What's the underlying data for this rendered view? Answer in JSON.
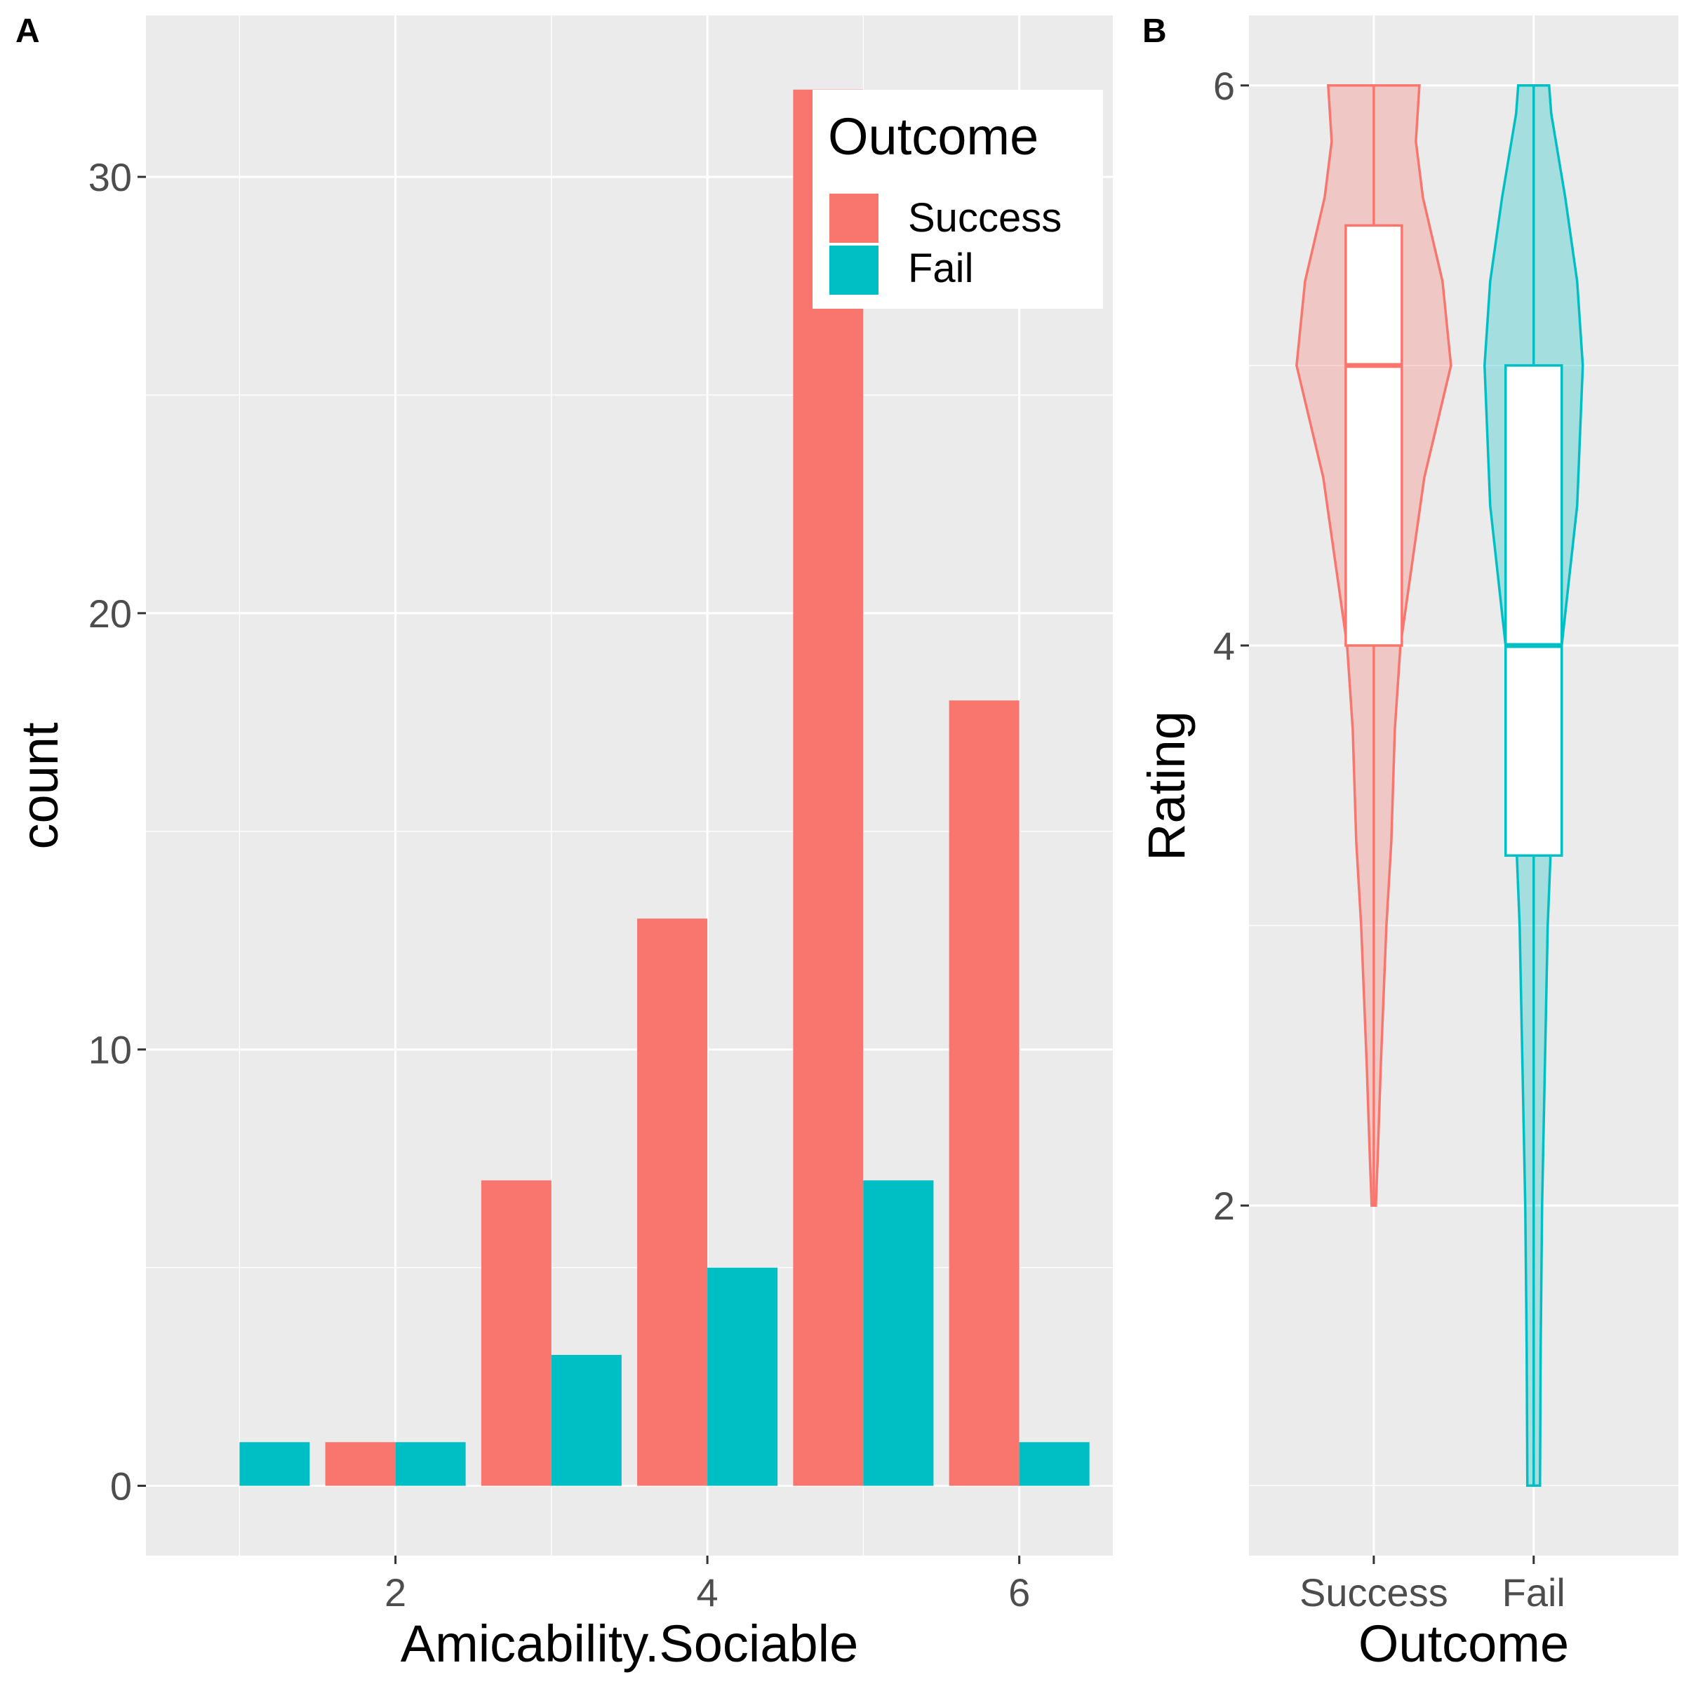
{
  "chart_data": [
    {
      "panel_label": "A",
      "type": "bar",
      "position": "dodge",
      "xlabel": "Amicability.Sociable",
      "ylabel": "count",
      "x": [
        1,
        2,
        3,
        4,
        5,
        6
      ],
      "xticks": [
        "2",
        "4",
        "6"
      ],
      "yticks": [
        "0",
        "10",
        "20",
        "30"
      ],
      "xlim": [
        0.4,
        6.6
      ],
      "ylim": [
        -1.6,
        33.7
      ],
      "grid": true,
      "series": [
        {
          "name": "Success",
          "color": "#F8766D",
          "values": [
            0,
            1,
            7,
            13,
            32,
            18
          ]
        },
        {
          "name": "Fail",
          "color": "#00BFC4",
          "values": [
            1,
            1,
            3,
            5,
            7,
            1
          ]
        }
      ],
      "legend": {
        "title": "Outcome",
        "placement": "top-right",
        "entries": [
          "Success",
          "Fail"
        ]
      }
    },
    {
      "panel_label": "B",
      "type": "violin+box",
      "xlabel": "Outcome",
      "ylabel": "Rating",
      "categories": [
        "Success",
        "Fail"
      ],
      "yticks": [
        "2",
        "4",
        "6"
      ],
      "ylim": [
        0.75,
        6.25
      ],
      "grid": true,
      "groups": [
        {
          "name": "Success",
          "color": "#F8766D",
          "fill": "#F8766D",
          "box": {
            "min": 2,
            "q1": 4,
            "median": 5,
            "q3": 5.5,
            "max": 6
          },
          "violin_range": [
            2,
            6
          ]
        },
        {
          "name": "Fail",
          "color": "#00BFC4",
          "fill": "#00BFC4",
          "box": {
            "min": 1,
            "q1": 3.25,
            "median": 4,
            "q3": 5,
            "max": 6
          },
          "violin_range": [
            1,
            6
          ]
        }
      ]
    }
  ]
}
